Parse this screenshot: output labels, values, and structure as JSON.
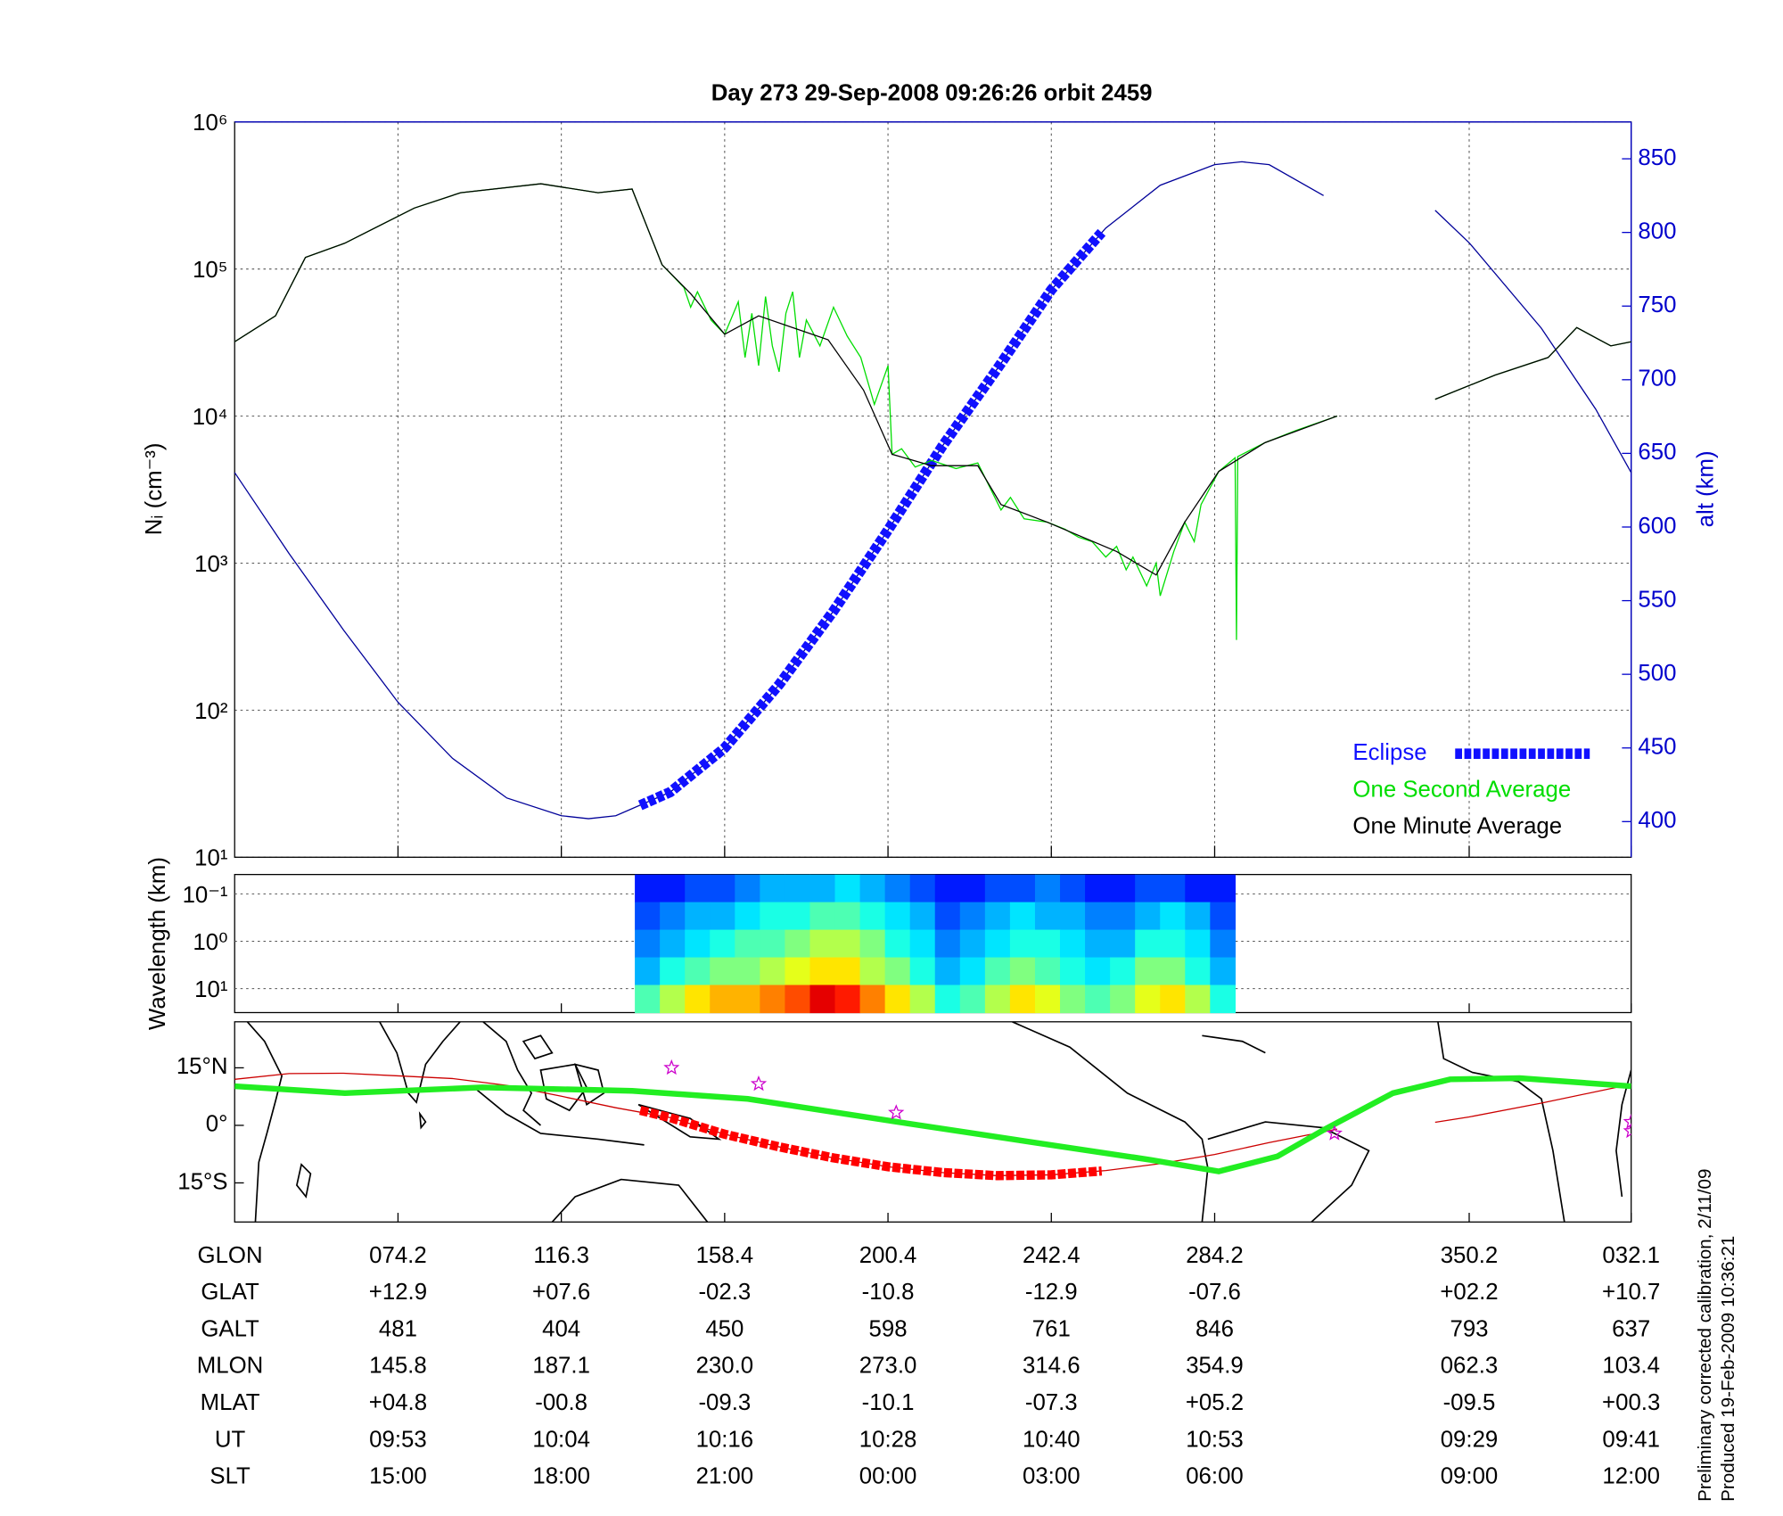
{
  "chart_data": [
    {
      "type": "line",
      "title": "Day 273  29-Sep-2008 09:26:26   orbit 2459",
      "ylabel": "Nᵢ (cm⁻³)",
      "y2label": "alt (km)",
      "log_y": true,
      "grid": true,
      "legend": "lower right",
      "xlim": [
        0,
        102.6
      ],
      "xticks": [
        12,
        24,
        36,
        48,
        60,
        72,
        90.7,
        102.6
      ],
      "ylim": [
        10,
        1000000
      ],
      "yticks": [
        {
          "value": 10,
          "label": "10¹"
        },
        {
          "value": 100,
          "label": "10²"
        },
        {
          "value": 1000,
          "label": "10³"
        },
        {
          "value": 10000,
          "label": "10⁴"
        },
        {
          "value": 100000,
          "label": "10⁵"
        },
        {
          "value": 1000000,
          "label": "10⁶"
        }
      ],
      "y2lim": [
        375.8,
        875
      ],
      "y2ticks": [
        400,
        450,
        500,
        550,
        600,
        650,
        700,
        750,
        800,
        850
      ],
      "series": [
        {
          "color": "#000099",
          "axis": "y2",
          "style": "thin",
          "x": [
            0,
            4,
            8,
            12,
            16,
            20,
            24,
            26,
            28,
            32,
            36,
            40,
            44,
            48,
            52,
            56,
            60,
            64,
            68,
            72,
            74,
            76,
            80,
            84,
            88.2,
            90.7,
            96,
            100,
            102.6
          ],
          "values": [
            637,
            582,
            530,
            481,
            443,
            416,
            404,
            402,
            404,
            420,
            450,
            493,
            543,
            598,
            655,
            707,
            761,
            803,
            832,
            846,
            848,
            846,
            825,
            null,
            815,
            793,
            735,
            680,
            637
          ]
        },
        {
          "name": "Eclipse",
          "color": "#1010ff",
          "axis": "y2",
          "style": "dashed-thick",
          "x": [
            29.8,
            32,
            36,
            40,
            44,
            48,
            52,
            56,
            60,
            63.7
          ],
          "values": [
            411,
            420,
            450,
            493,
            543,
            598,
            655,
            707,
            761,
            800
          ]
        },
        {
          "name": "One Second Average",
          "color": "#00dd00",
          "style": "thin",
          "x": [
            0,
            3,
            5.2,
            8.1,
            13.2,
            16.6,
            22.5,
            26.7,
            29.2,
            31.4,
            33,
            33.5,
            34,
            35,
            36,
            37,
            37.5,
            38,
            38.5,
            39,
            39.5,
            40,
            40.5,
            41,
            41.5,
            42,
            43,
            44,
            45,
            46,
            47,
            48,
            48.3,
            49,
            50,
            51.2,
            53,
            54.6,
            56.3,
            57,
            58,
            59.7,
            61,
            62,
            63,
            64,
            64.8,
            65.5,
            66,
            67,
            67.7,
            68,
            69,
            69.8,
            70.5,
            71,
            72.3,
            73.5,
            73.6,
            73.7,
            75.7,
            78,
            81,
            84,
            88.2,
            92.6,
            96.5,
            98.6,
            101.1,
            102.6
          ],
          "values": [
            32000,
            48000,
            120000,
            150000,
            260000,
            330000,
            380000,
            330000,
            350000,
            107000,
            75000,
            55000,
            70000,
            45000,
            36000,
            60000,
            25000,
            50000,
            22000,
            65000,
            30000,
            20000,
            50000,
            70000,
            25000,
            45000,
            30000,
            55000,
            35000,
            25000,
            12000,
            22000,
            5500,
            6000,
            4500,
            5000,
            4400,
            4800,
            2300,
            2800,
            2000,
            1900,
            1700,
            1500,
            1400,
            1100,
            1300,
            900,
            1100,
            700,
            1000,
            600,
            1200,
            1900,
            1400,
            2500,
            4200,
            5200,
            300,
            5300,
            6600,
            8000,
            10000,
            null,
            13000,
            19000,
            25000,
            40000,
            30000,
            32000
          ]
        },
        {
          "name": "One Minute Average",
          "color": "#000000",
          "style": "thin",
          "x": [
            0,
            3,
            5.2,
            8.1,
            13.2,
            16.6,
            22.5,
            26.7,
            29.2,
            31.4,
            33.5,
            36,
            38.5,
            43.6,
            46.2,
            48.3,
            51.2,
            54.6,
            56.3,
            59.7,
            64.8,
            67.7,
            69.8,
            72.3,
            75.7,
            81,
            84,
            88.2,
            92.6,
            96.5,
            98.6,
            101.1,
            102.6
          ],
          "values": [
            32000,
            48000,
            120000,
            150000,
            260000,
            330000,
            380000,
            330000,
            350000,
            107000,
            68000,
            36000,
            48000,
            33000,
            15000,
            5500,
            4600,
            4600,
            2500,
            1900,
            1200,
            830,
            1900,
            4200,
            6600,
            10000,
            null,
            13000,
            19000,
            25000,
            40000,
            30000,
            32000
          ]
        }
      ]
    },
    {
      "type": "heatmap",
      "ylabel": "Wavelength (km)",
      "log_y": true,
      "y_reversed": true,
      "grid": true,
      "ylim": [
        0.039,
        32
      ],
      "yticks": [
        {
          "value": 0.1,
          "label": "10⁻¹"
        },
        {
          "value": 1,
          "label": "10⁰"
        },
        {
          "value": 10,
          "label": "10¹"
        }
      ],
      "x_range": [
        29.4,
        73.5
      ],
      "values": [
        [
          0.15,
          0.15,
          0.2,
          0.2,
          0.25,
          0.3,
          0.3,
          0.3,
          0.35,
          0.3,
          0.25,
          0.2,
          0.15,
          0.15,
          0.2,
          0.2,
          0.25,
          0.2,
          0.15,
          0.15,
          0.2,
          0.2,
          0.15,
          0.15
        ],
        [
          0.2,
          0.25,
          0.3,
          0.3,
          0.35,
          0.4,
          0.4,
          0.45,
          0.45,
          0.4,
          0.35,
          0.3,
          0.2,
          0.25,
          0.3,
          0.35,
          0.3,
          0.3,
          0.25,
          0.25,
          0.3,
          0.35,
          0.3,
          0.2
        ],
        [
          0.25,
          0.3,
          0.35,
          0.4,
          0.45,
          0.45,
          0.5,
          0.55,
          0.55,
          0.5,
          0.4,
          0.35,
          0.25,
          0.3,
          0.35,
          0.4,
          0.4,
          0.35,
          0.3,
          0.3,
          0.4,
          0.4,
          0.35,
          0.25
        ],
        [
          0.3,
          0.4,
          0.45,
          0.5,
          0.5,
          0.55,
          0.6,
          0.65,
          0.65,
          0.55,
          0.5,
          0.4,
          0.3,
          0.35,
          0.45,
          0.5,
          0.45,
          0.4,
          0.35,
          0.4,
          0.5,
          0.5,
          0.4,
          0.3
        ],
        [
          0.45,
          0.55,
          0.65,
          0.7,
          0.7,
          0.75,
          0.8,
          0.9,
          0.85,
          0.75,
          0.65,
          0.55,
          0.4,
          0.45,
          0.55,
          0.65,
          0.6,
          0.5,
          0.45,
          0.5,
          0.6,
          0.65,
          0.55,
          0.4
        ]
      ]
    },
    {
      "type": "map",
      "ylim": [
        -25.2,
        27
      ],
      "yticks": [
        {
          "value": 15,
          "label": "15°N"
        },
        {
          "value": 0,
          "label": "0°"
        },
        {
          "value": -15,
          "label": "15°S"
        }
      ],
      "series": [
        {
          "color": "#cc0000",
          "style": "thin",
          "x": [
            0,
            4,
            8,
            12,
            16,
            20,
            24,
            28,
            32,
            36,
            40,
            44,
            48,
            52,
            56,
            60,
            64,
            68,
            72,
            76,
            81,
            84,
            88.2,
            90.7,
            96,
            102.6
          ],
          "values": [
            12,
            13.5,
            13.6,
            12.9,
            12.2,
            10.4,
            7.6,
            4.6,
            2,
            -2.3,
            -5.6,
            -8.5,
            -10.8,
            -12.3,
            -13.1,
            -12.9,
            -11.8,
            -10,
            -7.6,
            -4.5,
            -1,
            null,
            0.8,
            2.2,
            5.8,
            10.7
          ]
        },
        {
          "color": "#ff0000",
          "style": "dashed-thick",
          "x": [
            29.8,
            32,
            36,
            40,
            44,
            48,
            52,
            56,
            60,
            63.7
          ],
          "values": [
            3.9,
            2,
            -2.3,
            -5.6,
            -8.5,
            -10.8,
            -12.3,
            -13.1,
            -12.9,
            -11.9
          ]
        },
        {
          "color": "#22ee22",
          "style": "thick",
          "x": [
            0,
            8.1,
            18.2,
            29.2,
            37.7,
            48.7,
            58.8,
            67.3,
            72.3,
            76.6,
            80,
            85.1,
            89.3,
            94.4,
            102.6
          ],
          "values": [
            10.2,
            8.4,
            9.9,
            9,
            6.9,
            0.9,
            -4.5,
            -9,
            -12,
            -8.1,
            -1.2,
            8.4,
            12,
            12.3,
            10.2
          ]
        }
      ],
      "markers": {
        "color": "#cc00cc",
        "x": [
          32.1,
          38.5,
          48.6,
          80.8,
          102.6,
          102.6
        ],
        "values": [
          15,
          10.8,
          3.3,
          -2.1,
          0.9,
          -1.5
        ]
      }
    }
  ],
  "table": {
    "rows": [
      [
        "GLON",
        "074.2",
        "116.3",
        "158.4",
        "200.4",
        "242.4",
        "284.2",
        "350.2",
        "032.1"
      ],
      [
        "GLAT",
        "+12.9",
        "+07.6",
        "-02.3",
        "-10.8",
        "-12.9",
        "-07.6",
        "+02.2",
        "+10.7"
      ],
      [
        "GALT",
        "481",
        "404",
        "450",
        "598",
        "761",
        "846",
        "793",
        "637"
      ],
      [
        "MLON",
        "145.8",
        "187.1",
        "230.0",
        "273.0",
        "314.6",
        "354.9",
        "062.3",
        "103.4"
      ],
      [
        "MLAT",
        "+04.8",
        "-00.8",
        "-09.3",
        "-10.1",
        "-07.3",
        "+05.2",
        "-09.5",
        "+00.3"
      ],
      [
        "UT",
        "09:53",
        "10:04",
        "10:16",
        "10:28",
        "10:40",
        "10:53",
        "09:29",
        "09:41"
      ],
      [
        "SLT",
        "15:00",
        "18:00",
        "21:00",
        "00:00",
        "03:00",
        "06:00",
        "09:00",
        "12:00"
      ]
    ]
  },
  "footer": [
    "Preliminary corrected calibration, 2/11/09",
    "Produced 19-Feb-2009 10:36:21"
  ]
}
